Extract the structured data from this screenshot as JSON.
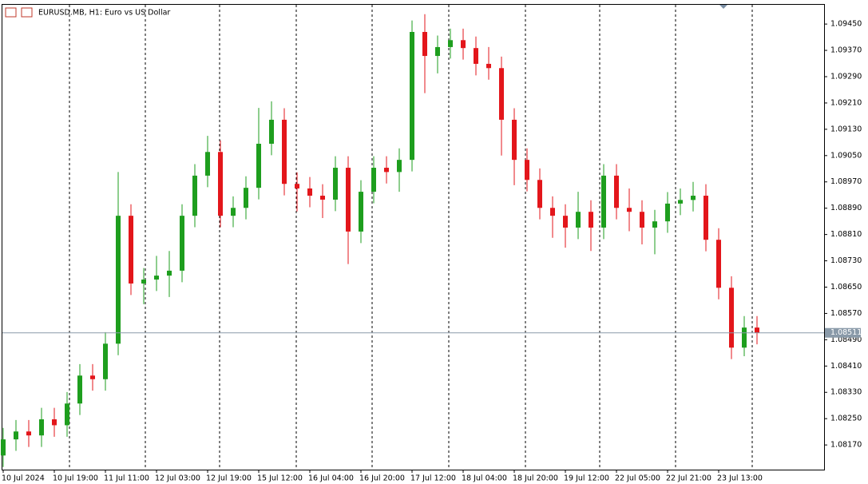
{
  "chart_data": {
    "type": "candlestick",
    "title": "EURUSD.MB, H1:  Euro vs US Dollar",
    "categories": [
      "10 Jul 2024",
      null,
      null,
      null,
      "10 Jul 19:00",
      null,
      null,
      null,
      "11 Jul 11:00",
      null,
      null,
      null,
      "12 Jul 03:00",
      null,
      null,
      null,
      "12 Jul 19:00",
      null,
      null,
      null,
      "15 Jul 12:00",
      null,
      null,
      null,
      "16 Jul 04:00",
      null,
      null,
      null,
      "16 Jul 20:00",
      null,
      null,
      null,
      "17 Jul 12:00",
      null,
      null,
      null,
      "18 Jul 04:00",
      null,
      null,
      null,
      "18 Jul 20:00",
      null,
      null,
      null,
      "19 Jul 12:00",
      null,
      null,
      null,
      "22 Jul 05:00",
      null,
      null,
      null,
      "22 Jul 21:00",
      null,
      null,
      null,
      "23 Jul 13:00",
      null,
      null,
      null
    ],
    "open": [
      1.08138,
      1.08187,
      1.08211,
      1.08199,
      1.08248,
      1.0823,
      1.08296,
      1.08381,
      1.0837,
      1.08478,
      1.08867,
      1.08661,
      1.08673,
      1.08685,
      1.087,
      1.08867,
      1.08989,
      1.09061,
      1.08867,
      1.08891,
      1.08952,
      1.09086,
      1.09159,
      1.08964,
      1.0895,
      1.08928,
      1.08916,
      1.09013,
      1.08819,
      1.0894,
      1.09013,
      1.09,
      1.09037,
      1.09426,
      1.09353,
      1.0938,
      1.09401,
      1.09377,
      1.09329,
      1.09316,
      1.09159,
      1.09037,
      1.08976,
      1.08891,
      1.08867,
      1.08831,
      1.08879,
      1.08831,
      1.08989,
      1.08891,
      1.08879,
      1.08831,
      1.0885,
      1.08904,
      1.08915,
      1.08928,
      1.08794,
      1.08648,
      1.08466,
      1.08527
    ],
    "high": [
      1.08222,
      1.08246,
      1.08246,
      1.08283,
      1.08283,
      1.08331,
      1.08416,
      1.08416,
      1.08513,
      1.09,
      1.08902,
      1.08708,
      1.08745,
      1.0876,
      1.08902,
      1.09024,
      1.0911,
      1.09096,
      1.08926,
      1.08987,
      1.09195,
      1.09215,
      1.09194,
      1.08999,
      1.08985,
      1.08963,
      1.09048,
      1.09048,
      1.08975,
      1.09048,
      1.09048,
      1.09072,
      1.09461,
      1.0948,
      1.09415,
      1.09436,
      1.09436,
      1.09412,
      1.0938,
      1.09351,
      1.09194,
      1.09072,
      1.09011,
      1.08926,
      1.08902,
      1.0894,
      1.08914,
      1.09024,
      1.09024,
      1.0895,
      1.08914,
      1.08885,
      1.08939,
      1.0895,
      1.0897,
      1.08963,
      1.08829,
      1.08683,
      1.08562,
      1.08562
    ],
    "low": [
      1.08103,
      1.08152,
      1.08164,
      1.08164,
      1.08195,
      1.08195,
      1.08261,
      1.08335,
      1.08335,
      1.08443,
      1.08626,
      1.08598,
      1.08638,
      1.0862,
      1.08665,
      1.08832,
      1.08954,
      1.08832,
      1.08832,
      1.08856,
      1.08917,
      1.09051,
      1.08929,
      1.0888,
      1.08893,
      1.0886,
      1.08881,
      1.0872,
      1.08784,
      1.08905,
      1.08965,
      1.0894,
      1.09002,
      1.0924,
      1.093,
      1.09345,
      1.09342,
      1.09294,
      1.09281,
      1.0905,
      1.0896,
      1.08941,
      1.08856,
      1.088,
      1.0877,
      1.08796,
      1.0876,
      1.08796,
      1.08856,
      1.0882,
      1.0878,
      1.0875,
      1.08815,
      1.08869,
      1.0888,
      1.08759,
      1.08613,
      1.08431,
      1.0844,
      1.08476
    ],
    "close": [
      1.08187,
      1.08211,
      1.08199,
      1.08248,
      1.0823,
      1.08296,
      1.08381,
      1.0837,
      1.08478,
      1.08867,
      1.08661,
      1.08673,
      1.08685,
      1.087,
      1.08867,
      1.08989,
      1.09061,
      1.08867,
      1.08891,
      1.08952,
      1.09086,
      1.09159,
      1.08964,
      1.0895,
      1.08928,
      1.08916,
      1.09013,
      1.08819,
      1.0894,
      1.09013,
      1.09,
      1.09037,
      1.09426,
      1.09353,
      1.0938,
      1.09401,
      1.09377,
      1.09329,
      1.09316,
      1.09159,
      1.09037,
      1.08976,
      1.08891,
      1.08867,
      1.08831,
      1.08879,
      1.08831,
      1.08989,
      1.08891,
      1.08879,
      1.08831,
      1.0885,
      1.08904,
      1.08915,
      1.08928,
      1.08794,
      1.08648,
      1.08466,
      1.08527,
      1.08511
    ],
    "up_color": "#1e9e1e",
    "down_color": "#e3161b",
    "ylim": [
      1.08095,
      1.09511
    ],
    "yticks": [
      {
        "value": 1.0945,
        "label": "1.09450"
      },
      {
        "value": 1.0937,
        "label": "1.09370"
      },
      {
        "value": 1.0929,
        "label": "1.09290"
      },
      {
        "value": 1.0921,
        "label": "1.09210"
      },
      {
        "value": 1.0913,
        "label": "1.09130"
      },
      {
        "value": 1.0905,
        "label": "1.09050"
      },
      {
        "value": 1.0897,
        "label": "1.08970"
      },
      {
        "value": 1.0889,
        "label": "1.08890"
      },
      {
        "value": 1.0881,
        "label": "1.08810"
      },
      {
        "value": 1.0873,
        "label": "1.08730"
      },
      {
        "value": 1.0865,
        "label": "1.08650"
      },
      {
        "value": 1.0857,
        "label": "1.08570"
      },
      {
        "value": 1.0849,
        "label": "1.08490"
      },
      {
        "value": 1.0841,
        "label": "1.08410"
      },
      {
        "value": 1.0833,
        "label": "1.08330"
      },
      {
        "value": 1.0825,
        "label": "1.08250"
      },
      {
        "value": 1.0817,
        "label": "1.08170"
      }
    ],
    "current_price": {
      "value": 1.08511,
      "label": "1.08511"
    }
  }
}
